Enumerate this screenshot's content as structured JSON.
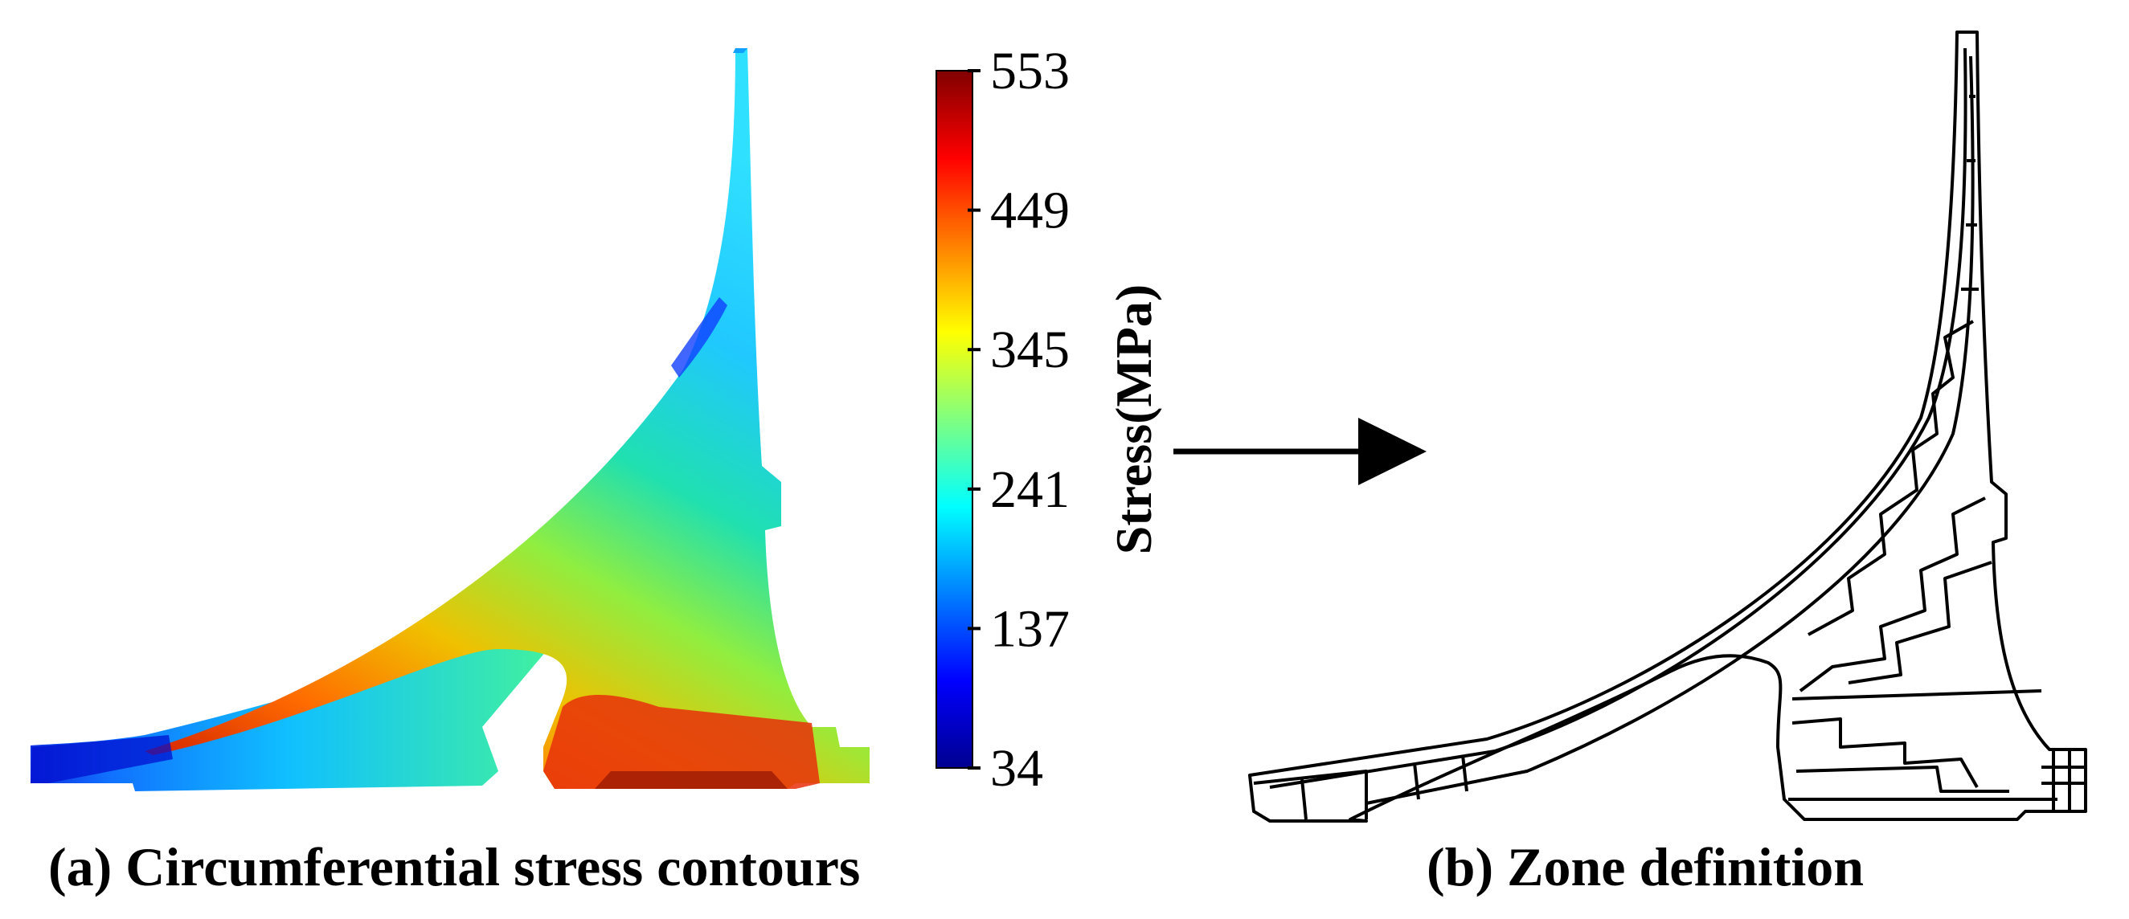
{
  "panel_a": {
    "caption": "(a) Circumferential stress contours",
    "colorbar": {
      "title": "Stress(MPa)",
      "min": 34,
      "max": 553,
      "ticks": [
        "553",
        "449",
        "345",
        "241",
        "137",
        "34"
      ],
      "colors": [
        "#00008f",
        "#0000ff",
        "#0080ff",
        "#00ffff",
        "#80ff80",
        "#ffff00",
        "#ff8000",
        "#ff0000",
        "#800000"
      ]
    }
  },
  "panel_b": {
    "caption": "(b) Zone definition"
  },
  "arrow": {
    "direction": "right"
  }
}
